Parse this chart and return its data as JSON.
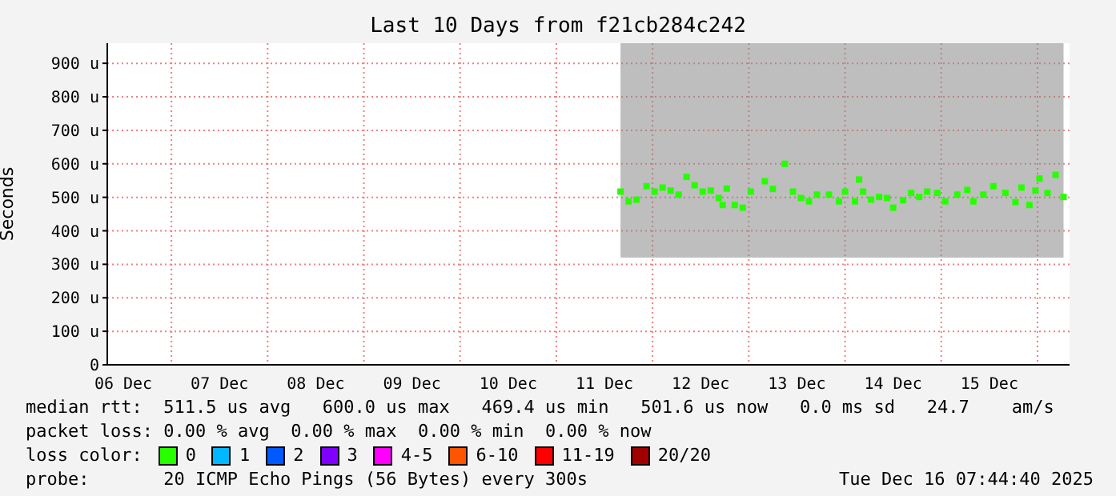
{
  "chart_data": {
    "type": "scatter",
    "title": "Last 10 Days from f21cb284c242",
    "ylabel": "Seconds",
    "legend_title": "loss color:",
    "legend": "bottom",
    "grid": true,
    "marker": "square",
    "xlim": [
      "2025-12-06T08:00",
      "2025-12-16T08:00"
    ],
    "xticks": [
      {
        "value": "2025-12-06T12:00",
        "label": "06 Dec"
      },
      {
        "value": "2025-12-07T12:00",
        "label": "07 Dec"
      },
      {
        "value": "2025-12-08T12:00",
        "label": "08 Dec"
      },
      {
        "value": "2025-12-09T12:00",
        "label": "09 Dec"
      },
      {
        "value": "2025-12-10T12:00",
        "label": "10 Dec"
      },
      {
        "value": "2025-12-11T12:00",
        "label": "11 Dec"
      },
      {
        "value": "2025-12-12T12:00",
        "label": "12 Dec"
      },
      {
        "value": "2025-12-13T12:00",
        "label": "13 Dec"
      },
      {
        "value": "2025-12-14T12:00",
        "label": "14 Dec"
      },
      {
        "value": "2025-12-15T12:00",
        "label": "15 Dec"
      }
    ],
    "ylim": [
      0,
      960
    ],
    "yticks": [
      0,
      {
        "value": 100,
        "label": "100 u"
      },
      {
        "value": 200,
        "label": "200 u"
      },
      {
        "value": 300,
        "label": "300 u"
      },
      {
        "value": 400,
        "label": "400 u"
      },
      {
        "value": 500,
        "label": "500 u"
      },
      {
        "value": 600,
        "label": "600 u"
      },
      {
        "value": 700,
        "label": "700 u"
      },
      {
        "value": 800,
        "label": "800 u"
      },
      {
        "value": 900,
        "label": "900 u"
      }
    ],
    "x": [
      "2025-12-11T16:00",
      "2025-12-11T18:00",
      "2025-12-11T20:00",
      "2025-12-11T22:30",
      "2025-12-12T00:30",
      "2025-12-12T02:30",
      "2025-12-12T04:30",
      "2025-12-12T06:30",
      "2025-12-12T08:30",
      "2025-12-12T10:30",
      "2025-12-12T12:30",
      "2025-12-12T14:30",
      "2025-12-12T16:30",
      "2025-12-12T17:30",
      "2025-12-12T18:30",
      "2025-12-12T20:30",
      "2025-12-12T22:30",
      "2025-12-13T00:30",
      "2025-12-13T04:00",
      "2025-12-13T06:00",
      "2025-12-13T09:00",
      "2025-12-13T11:00",
      "2025-12-13T13:00",
      "2025-12-13T15:00",
      "2025-12-13T17:00",
      "2025-12-13T20:00",
      "2025-12-13T22:30",
      "2025-12-14T00:00",
      "2025-12-14T02:30",
      "2025-12-14T03:30",
      "2025-12-14T04:30",
      "2025-12-14T06:30",
      "2025-12-14T08:30",
      "2025-12-14T10:30",
      "2025-12-14T12:00",
      "2025-12-14T14:30",
      "2025-12-14T16:30",
      "2025-12-14T18:30",
      "2025-12-14T20:30",
      "2025-12-14T23:00",
      "2025-12-15T01:00",
      "2025-12-15T04:00",
      "2025-12-15T06:30",
      "2025-12-15T08:00",
      "2025-12-15T10:30",
      "2025-12-15T13:00",
      "2025-12-15T16:00",
      "2025-12-15T18:30",
      "2025-12-15T20:00",
      "2025-12-15T22:00",
      "2025-12-15T23:30",
      "2025-12-16T00:30",
      "2025-12-16T02:30",
      "2025-12-16T04:30",
      "2025-12-16T06:30"
    ],
    "series": [
      {
        "name": "0",
        "color": "#26ff00",
        "values": [
          517,
          488,
          493,
          533,
          517,
          529,
          520,
          508,
          561,
          536,
          517,
          520,
          498,
          477,
          526,
          477,
          469,
          517,
          548,
          525,
          600,
          517,
          498,
          488,
          508,
          508,
          488,
          517,
          488,
          553,
          517,
          493,
          501,
          498,
          469,
          491,
          513,
          501,
          517,
          513,
          488,
          508,
          522,
          488,
          508,
          533,
          513,
          486,
          529,
          477,
          520,
          556,
          513,
          567,
          501
        ],
        "lower": [
          320,
          320,
          320,
          320,
          320,
          320,
          320,
          320,
          320,
          320,
          320,
          320,
          320,
          320,
          320,
          320,
          320,
          320,
          320,
          320,
          320,
          320,
          320,
          320,
          320,
          320,
          320,
          320,
          320,
          320,
          320,
          320,
          320,
          320,
          320,
          320,
          320,
          320,
          320,
          320,
          320,
          320,
          320,
          320,
          320,
          320,
          320,
          320,
          320,
          320,
          320,
          320,
          320,
          320,
          320
        ],
        "upper": [
          960,
          960,
          960,
          960,
          960,
          960,
          960,
          960,
          960,
          960,
          960,
          960,
          960,
          960,
          960,
          960,
          960,
          960,
          960,
          960,
          960,
          960,
          960,
          960,
          960,
          960,
          960,
          960,
          960,
          960,
          960,
          960,
          960,
          960,
          960,
          960,
          960,
          960,
          960,
          960,
          960,
          960,
          960,
          960,
          960,
          960,
          960,
          960,
          960,
          960,
          960,
          960,
          960,
          960,
          960
        ]
      },
      {
        "name": "1",
        "color": "#00b8ff",
        "values": [
          null,
          null,
          null,
          null,
          null,
          null,
          null,
          null,
          null,
          null,
          null,
          null,
          null,
          null,
          null,
          null,
          null,
          null,
          null,
          null,
          null,
          null,
          null,
          null,
          null,
          null,
          null,
          null,
          null,
          null,
          null,
          null,
          null,
          null,
          null,
          null,
          null,
          null,
          null,
          null,
          null,
          null,
          null,
          null,
          null,
          null,
          null,
          null,
          null,
          null,
          null,
          null,
          null,
          null,
          null
        ]
      },
      {
        "name": "2",
        "color": "#0059ff",
        "values": [
          null,
          null,
          null,
          null,
          null,
          null,
          null,
          null,
          null,
          null,
          null,
          null,
          null,
          null,
          null,
          null,
          null,
          null,
          null,
          null,
          null,
          null,
          null,
          null,
          null,
          null,
          null,
          null,
          null,
          null,
          null,
          null,
          null,
          null,
          null,
          null,
          null,
          null,
          null,
          null,
          null,
          null,
          null,
          null,
          null,
          null,
          null,
          null,
          null,
          null,
          null,
          null,
          null,
          null,
          null
        ]
      },
      {
        "name": "3",
        "color": "#7e00ff",
        "values": [
          null,
          null,
          null,
          null,
          null,
          null,
          null,
          null,
          null,
          null,
          null,
          null,
          null,
          null,
          null,
          null,
          null,
          null,
          null,
          null,
          null,
          null,
          null,
          null,
          null,
          null,
          null,
          null,
          null,
          null,
          null,
          null,
          null,
          null,
          null,
          null,
          null,
          null,
          null,
          null,
          null,
          null,
          null,
          null,
          null,
          null,
          null,
          null,
          null,
          null,
          null,
          null,
          null,
          null,
          null
        ]
      },
      {
        "name": "4-5",
        "color": "#ff00ff",
        "values": [
          null,
          null,
          null,
          null,
          null,
          null,
          null,
          null,
          null,
          null,
          null,
          null,
          null,
          null,
          null,
          null,
          null,
          null,
          null,
          null,
          null,
          null,
          null,
          null,
          null,
          null,
          null,
          null,
          null,
          null,
          null,
          null,
          null,
          null,
          null,
          null,
          null,
          null,
          null,
          null,
          null,
          null,
          null,
          null,
          null,
          null,
          null,
          null,
          null,
          null,
          null,
          null,
          null,
          null,
          null
        ]
      },
      {
        "name": "6-10",
        "color": "#ff5500",
        "values": [
          null,
          null,
          null,
          null,
          null,
          null,
          null,
          null,
          null,
          null,
          null,
          null,
          null,
          null,
          null,
          null,
          null,
          null,
          null,
          null,
          null,
          null,
          null,
          null,
          null,
          null,
          null,
          null,
          null,
          null,
          null,
          null,
          null,
          null,
          null,
          null,
          null,
          null,
          null,
          null,
          null,
          null,
          null,
          null,
          null,
          null,
          null,
          null,
          null,
          null,
          null,
          null,
          null,
          null,
          null
        ]
      },
      {
        "name": "11-19",
        "color": "#ff0000",
        "values": [
          null,
          null,
          null,
          null,
          null,
          null,
          null,
          null,
          null,
          null,
          null,
          null,
          null,
          null,
          null,
          null,
          null,
          null,
          null,
          null,
          null,
          null,
          null,
          null,
          null,
          null,
          null,
          null,
          null,
          null,
          null,
          null,
          null,
          null,
          null,
          null,
          null,
          null,
          null,
          null,
          null,
          null,
          null,
          null,
          null,
          null,
          null,
          null,
          null,
          null,
          null,
          null,
          null,
          null,
          null
        ]
      },
      {
        "name": "20/20",
        "color": "#a10000",
        "values": [
          null,
          null,
          null,
          null,
          null,
          null,
          null,
          null,
          null,
          null,
          null,
          null,
          null,
          null,
          null,
          null,
          null,
          null,
          null,
          null,
          null,
          null,
          null,
          null,
          null,
          null,
          null,
          null,
          null,
          null,
          null,
          null,
          null,
          null,
          null,
          null,
          null,
          null,
          null,
          null,
          null,
          null,
          null,
          null,
          null,
          null,
          null,
          null,
          null,
          null,
          null,
          null,
          null,
          null,
          null
        ]
      }
    ],
    "annotations": [
      "median rtt:  511.5 us avg   600.0 us max   469.4 us min   501.6 us now   0.0 ms sd   24.7    am/s",
      "packet loss: 0.00 % avg  0.00 % max  0.00 % min  0.00 % now",
      "probe:       20 ICMP Echo Pings (56 Bytes) every 300s",
      "Tue Dec 16 07:44:40 2025"
    ]
  }
}
